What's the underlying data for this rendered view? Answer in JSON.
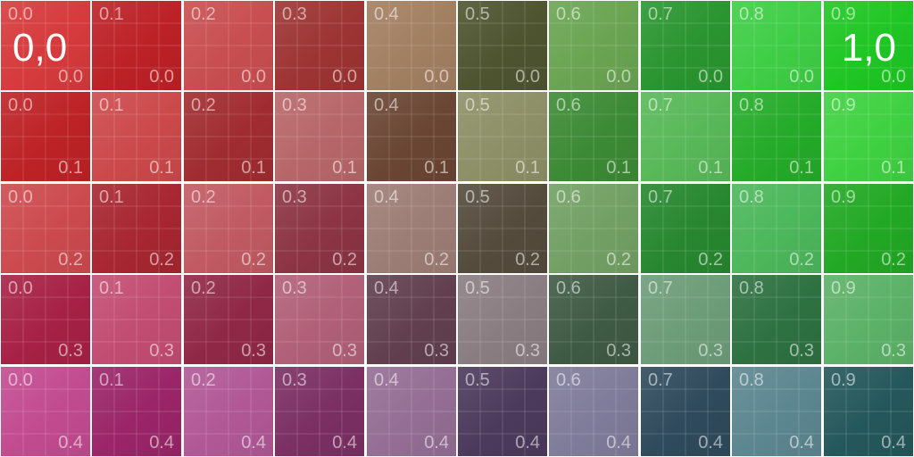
{
  "corner_labels": {
    "origin": "0,0",
    "x_end": "1,0"
  },
  "tiles": [
    [
      {
        "u": "0.0",
        "v": "0.0",
        "color": "#d63a3c"
      },
      {
        "u": "0.1",
        "v": "0.0",
        "color": "#bc2126"
      },
      {
        "u": "0.2",
        "v": "0.0",
        "color": "#c84e50"
      },
      {
        "u": "0.3",
        "v": "0.0",
        "color": "#9c3433"
      },
      {
        "u": "0.4",
        "v": "0.0",
        "color": "#a27f61"
      },
      {
        "u": "0.5",
        "v": "0.0",
        "color": "#4e5430"
      },
      {
        "u": "0.6",
        "v": "0.0",
        "color": "#6aa452"
      },
      {
        "u": "0.7",
        "v": "0.0",
        "color": "#2a9530"
      },
      {
        "u": "0.8",
        "v": "0.0",
        "color": "#3fcd46"
      },
      {
        "u": "0.9",
        "v": "0.0",
        "color": "#1ec623"
      }
    ],
    [
      {
        "u": "0.0",
        "v": "0.1",
        "color": "#bd2226"
      },
      {
        "u": "0.1",
        "v": "0.1",
        "color": "#cc494b"
      },
      {
        "u": "0.2",
        "v": "0.1",
        "color": "#a02c30"
      },
      {
        "u": "0.3",
        "v": "0.1",
        "color": "#b76668"
      },
      {
        "u": "0.4",
        "v": "0.1",
        "color": "#6a4533"
      },
      {
        "u": "0.5",
        "v": "0.1",
        "color": "#8d8f66"
      },
      {
        "u": "0.6",
        "v": "0.1",
        "color": "#3c8a35"
      },
      {
        "u": "0.7",
        "v": "0.1",
        "color": "#58b858"
      },
      {
        "u": "0.8",
        "v": "0.1",
        "color": "#25ab29"
      },
      {
        "u": "0.9",
        "v": "0.1",
        "color": "#3fd141"
      }
    ],
    [
      {
        "u": "0.0",
        "v": "0.2",
        "color": "#cc4a4e"
      },
      {
        "u": "0.1",
        "v": "0.2",
        "color": "#a72631"
      },
      {
        "u": "0.2",
        "v": "0.2",
        "color": "#c15a62"
      },
      {
        "u": "0.3",
        "v": "0.2",
        "color": "#8c3443"
      },
      {
        "u": "0.4",
        "v": "0.2",
        "color": "#9c7d75"
      },
      {
        "u": "0.5",
        "v": "0.2",
        "color": "#544b3d"
      },
      {
        "u": "0.6",
        "v": "0.2",
        "color": "#72a064"
      },
      {
        "u": "0.7",
        "v": "0.2",
        "color": "#27872f"
      },
      {
        "u": "0.8",
        "v": "0.2",
        "color": "#4cb75b"
      },
      {
        "u": "0.9",
        "v": "0.2",
        "color": "#22a824"
      }
    ],
    [
      {
        "u": "0.0",
        "v": "0.3",
        "color": "#a62145"
      },
      {
        "u": "0.1",
        "v": "0.3",
        "color": "#c24d72"
      },
      {
        "u": "0.2",
        "v": "0.3",
        "color": "#8f2846"
      },
      {
        "u": "0.3",
        "v": "0.3",
        "color": "#b06078"
      },
      {
        "u": "0.4",
        "v": "0.3",
        "color": "#613f4f"
      },
      {
        "u": "0.5",
        "v": "0.3",
        "color": "#8a7d82"
      },
      {
        "u": "0.6",
        "v": "0.3",
        "color": "#3f5a44"
      },
      {
        "u": "0.7",
        "v": "0.3",
        "color": "#6d9c78"
      },
      {
        "u": "0.8",
        "v": "0.3",
        "color": "#2e7141"
      },
      {
        "u": "0.9",
        "v": "0.3",
        "color": "#5cb168"
      }
    ],
    [
      {
        "u": "0.0",
        "v": "0.4",
        "color": "#c24b90"
      },
      {
        "u": "0.1",
        "v": "0.4",
        "color": "#9a2568"
      },
      {
        "u": "0.2",
        "v": "0.4",
        "color": "#b05896"
      },
      {
        "u": "0.3",
        "v": "0.4",
        "color": "#7b2f63"
      },
      {
        "u": "0.4",
        "v": "0.4",
        "color": "#946e94"
      },
      {
        "u": "0.5",
        "v": "0.4",
        "color": "#4c3a5c"
      },
      {
        "u": "0.6",
        "v": "0.4",
        "color": "#7f7b9a"
      },
      {
        "u": "0.7",
        "v": "0.4",
        "color": "#2f4a5c"
      },
      {
        "u": "0.8",
        "v": "0.4",
        "color": "#5c8690"
      },
      {
        "u": "0.9",
        "v": "0.4",
        "color": "#24575b"
      }
    ]
  ]
}
